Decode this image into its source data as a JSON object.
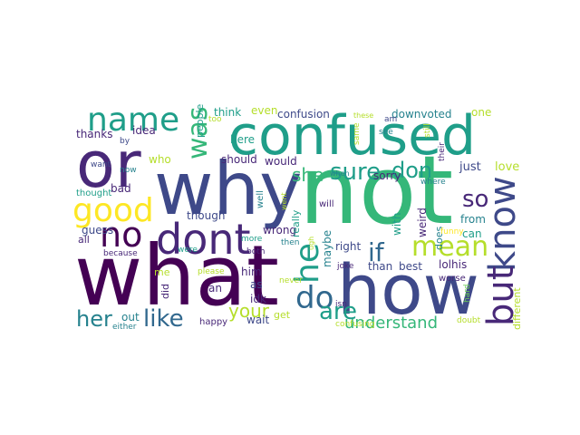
{
  "palette": {
    "purple_dark": "#440154",
    "purple": "#482878",
    "indigo": "#3e4989",
    "blue": "#31688e",
    "teal_blue": "#26828e",
    "teal": "#1f9e89",
    "green_teal": "#35b779",
    "green": "#6ece58",
    "lime": "#b5de2b",
    "yellow": "#fde725"
  },
  "words": [
    "not",
    "what",
    "how",
    "why",
    "confused",
    "or",
    "know",
    "dont",
    "name",
    "no",
    "good",
    "but",
    "do",
    "if",
    "mean",
    "he",
    "sure",
    "was",
    "are",
    "like",
    "her",
    "don",
    "so",
    "your",
    "she",
    "understand",
    "just",
    "love",
    "thanks",
    "confusion",
    "even",
    "think",
    "downvoted",
    "one",
    "would",
    "should",
    "here",
    "who",
    "people",
    "idea",
    "bad",
    "wrong",
    "sorry",
    "maybe",
    "with",
    "weird",
    "does",
    "from",
    "can",
    "right",
    "guess",
    "all",
    "though",
    "him",
    "as",
    "idk",
    "lolhis",
    "best",
    "than",
    "different",
    "wait",
    "get",
    "me",
    "did",
    "out",
    "happy",
    "either",
    "an",
    "really",
    "well",
    "will",
    "thought",
    "want",
    "now",
    "by",
    "too",
    "am",
    "see",
    "still",
    "same",
    "where",
    "their",
    "worse",
    "joke",
    "isn",
    "then",
    "never",
    "both",
    "more",
    "because",
    "were",
    "please",
    "funny",
    "confusing",
    "doubt",
    "hard",
    "when",
    "ugh",
    "these",
    "went"
  ]
}
